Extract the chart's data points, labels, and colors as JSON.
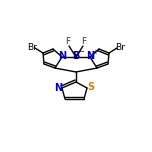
{
  "bg_color": "#ffffff",
  "line_color": "#000000",
  "atom_colors": {
    "N": "#0000cc",
    "B": "#000080",
    "Br": "#000000",
    "F": "#333333",
    "S": "#cc8800",
    "C": "#000000"
  },
  "figsize": [
    1.52,
    1.52
  ],
  "dpi": 100
}
